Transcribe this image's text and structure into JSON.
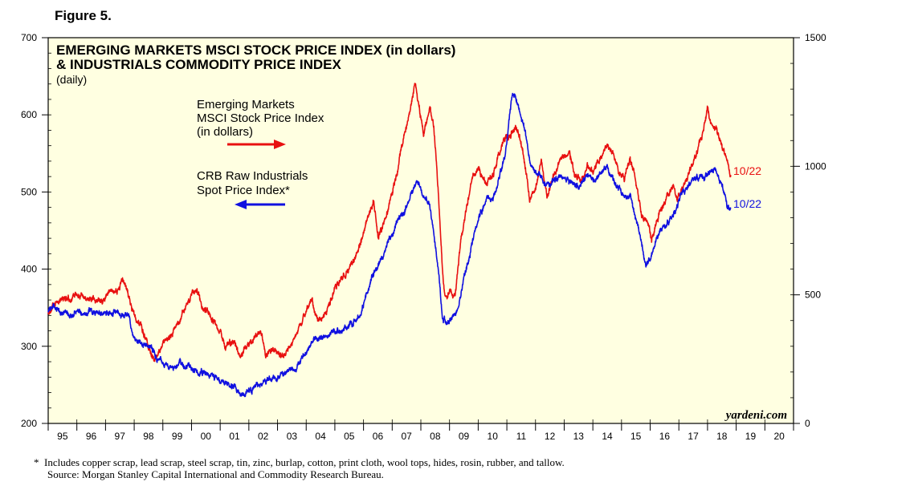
{
  "figure_label": "Figure 5.",
  "chart_data": {
    "type": "line",
    "title_line1": "EMERGING MARKETS MSCI STOCK PRICE INDEX (in dollars)",
    "title_line2": "& INDUSTRIALS COMMODITY PRICE INDEX",
    "subtitle": "(daily)",
    "x_ticks": [
      "95",
      "96",
      "97",
      "98",
      "99",
      "00",
      "01",
      "02",
      "03",
      "04",
      "05",
      "06",
      "07",
      "08",
      "09",
      "10",
      "11",
      "12",
      "13",
      "14",
      "15",
      "16",
      "17",
      "18",
      "19",
      "20"
    ],
    "xlim": [
      1995,
      2021
    ],
    "y_left": {
      "ylim": [
        200,
        700
      ],
      "ticks": [
        200,
        300,
        400,
        500,
        600,
        700
      ],
      "minor_step": 20
    },
    "y_right": {
      "ylim": [
        0,
        1500
      ],
      "ticks": [
        0,
        500,
        1000,
        1500
      ],
      "minor_step": 100
    },
    "series": [
      {
        "name": "Emerging Markets MSCI Stock Price Index (in dollars)",
        "legend_lines": [
          "Emerging Markets",
          "MSCI Stock Price Index",
          "(in dollars)"
        ],
        "axis": "left",
        "color": "#e81010",
        "end_label": "10/22",
        "points": [
          [
            1995.0,
            345
          ],
          [
            1995.2,
            352
          ],
          [
            1995.5,
            365
          ],
          [
            1995.8,
            360
          ],
          [
            1996.0,
            368
          ],
          [
            1996.3,
            362
          ],
          [
            1996.6,
            360
          ],
          [
            1996.9,
            356
          ],
          [
            1997.2,
            375
          ],
          [
            1997.4,
            370
          ],
          [
            1997.6,
            388
          ],
          [
            1997.8,
            365
          ],
          [
            1998.0,
            340
          ],
          [
            1998.2,
            330
          ],
          [
            1998.5,
            300
          ],
          [
            1998.7,
            282
          ],
          [
            1998.9,
            295
          ],
          [
            1999.1,
            305
          ],
          [
            1999.3,
            315
          ],
          [
            1999.6,
            335
          ],
          [
            1999.8,
            350
          ],
          [
            2000.0,
            365
          ],
          [
            2000.15,
            375
          ],
          [
            2000.35,
            350
          ],
          [
            2000.6,
            345
          ],
          [
            2000.9,
            325
          ],
          [
            2001.2,
            300
          ],
          [
            2001.5,
            305
          ],
          [
            2001.7,
            285
          ],
          [
            2001.9,
            300
          ],
          [
            2002.2,
            310
          ],
          [
            2002.4,
            318
          ],
          [
            2002.6,
            290
          ],
          [
            2002.8,
            295
          ],
          [
            2003.0,
            290
          ],
          [
            2003.2,
            288
          ],
          [
            2003.5,
            305
          ],
          [
            2003.8,
            325
          ],
          [
            2004.0,
            345
          ],
          [
            2004.2,
            360
          ],
          [
            2004.4,
            330
          ],
          [
            2004.7,
            345
          ],
          [
            2005.0,
            375
          ],
          [
            2005.3,
            390
          ],
          [
            2005.6,
            405
          ],
          [
            2005.9,
            435
          ],
          [
            2006.1,
            460
          ],
          [
            2006.35,
            490
          ],
          [
            2006.5,
            440
          ],
          [
            2006.8,
            470
          ],
          [
            2007.0,
            500
          ],
          [
            2007.2,
            530
          ],
          [
            2007.4,
            570
          ],
          [
            2007.6,
            600
          ],
          [
            2007.8,
            640
          ],
          [
            2007.9,
            620
          ],
          [
            2008.1,
            575
          ],
          [
            2008.3,
            610
          ],
          [
            2008.45,
            585
          ],
          [
            2008.6,
            505
          ],
          [
            2008.75,
            400
          ],
          [
            2008.85,
            360
          ],
          [
            2009.0,
            375
          ],
          [
            2009.2,
            365
          ],
          [
            2009.4,
            440
          ],
          [
            2009.6,
            480
          ],
          [
            2009.8,
            520
          ],
          [
            2010.0,
            530
          ],
          [
            2010.3,
            510
          ],
          [
            2010.5,
            520
          ],
          [
            2010.8,
            560
          ],
          [
            2010.95,
            570
          ],
          [
            2011.1,
            570
          ],
          [
            2011.3,
            585
          ],
          [
            2011.5,
            565
          ],
          [
            2011.7,
            520
          ],
          [
            2011.8,
            490
          ],
          [
            2012.0,
            505
          ],
          [
            2012.2,
            540
          ],
          [
            2012.4,
            495
          ],
          [
            2012.6,
            515
          ],
          [
            2012.9,
            545
          ],
          [
            2013.2,
            545
          ],
          [
            2013.4,
            520
          ],
          [
            2013.6,
            515
          ],
          [
            2013.8,
            535
          ],
          [
            2014.0,
            525
          ],
          [
            2014.2,
            540
          ],
          [
            2014.5,
            560
          ],
          [
            2014.7,
            548
          ],
          [
            2014.9,
            525
          ],
          [
            2015.1,
            520
          ],
          [
            2015.3,
            545
          ],
          [
            2015.5,
            515
          ],
          [
            2015.7,
            470
          ],
          [
            2015.9,
            465
          ],
          [
            2016.05,
            440
          ],
          [
            2016.3,
            470
          ],
          [
            2016.6,
            495
          ],
          [
            2016.8,
            505
          ],
          [
            2016.95,
            490
          ],
          [
            2017.2,
            510
          ],
          [
            2017.5,
            540
          ],
          [
            2017.8,
            570
          ],
          [
            2018.0,
            612
          ],
          [
            2018.1,
            590
          ],
          [
            2018.3,
            580
          ],
          [
            2018.5,
            560
          ],
          [
            2018.65,
            545
          ],
          [
            2018.75,
            530
          ],
          [
            2018.81,
            522
          ]
        ]
      },
      {
        "name": "CRB Raw Industrials Spot Price Index*",
        "legend_lines": [
          "CRB Raw Industrials",
          "Spot Price Index*"
        ],
        "axis": "right",
        "color": "#1010e0",
        "end_label": "10/22",
        "points": [
          [
            1995.0,
            440
          ],
          [
            1995.2,
            455
          ],
          [
            1995.5,
            430
          ],
          [
            1995.8,
            420
          ],
          [
            1996.0,
            440
          ],
          [
            1996.3,
            425
          ],
          [
            1996.6,
            440
          ],
          [
            1996.9,
            425
          ],
          [
            1997.1,
            430
          ],
          [
            1997.3,
            435
          ],
          [
            1997.6,
            425
          ],
          [
            1997.8,
            415
          ],
          [
            1998.0,
            330
          ],
          [
            1998.3,
            310
          ],
          [
            1998.6,
            295
          ],
          [
            1998.8,
            250
          ],
          [
            1999.0,
            235
          ],
          [
            1999.3,
            210
          ],
          [
            1999.6,
            225
          ],
          [
            1999.9,
            215
          ],
          [
            2000.2,
            205
          ],
          [
            2000.5,
            190
          ],
          [
            2000.8,
            180
          ],
          [
            2001.1,
            160
          ],
          [
            2001.3,
            155
          ],
          [
            2001.5,
            140
          ],
          [
            2001.7,
            105
          ],
          [
            2001.9,
            120
          ],
          [
            2002.2,
            135
          ],
          [
            2002.5,
            160
          ],
          [
            2002.8,
            175
          ],
          [
            2003.0,
            180
          ],
          [
            2003.3,
            200
          ],
          [
            2003.6,
            210
          ],
          [
            2003.9,
            260
          ],
          [
            2004.1,
            300
          ],
          [
            2004.3,
            330
          ],
          [
            2004.6,
            330
          ],
          [
            2004.9,
            360
          ],
          [
            2005.2,
            360
          ],
          [
            2005.5,
            385
          ],
          [
            2005.7,
            400
          ],
          [
            2005.9,
            420
          ],
          [
            2006.1,
            500
          ],
          [
            2006.3,
            570
          ],
          [
            2006.5,
            610
          ],
          [
            2006.8,
            690
          ],
          [
            2007.0,
            740
          ],
          [
            2007.2,
            790
          ],
          [
            2007.4,
            820
          ],
          [
            2007.6,
            870
          ],
          [
            2007.8,
            930
          ],
          [
            2007.9,
            940
          ],
          [
            2008.1,
            880
          ],
          [
            2008.3,
            850
          ],
          [
            2008.45,
            740
          ],
          [
            2008.6,
            600
          ],
          [
            2008.75,
            420
          ],
          [
            2008.9,
            380
          ],
          [
            2009.1,
            420
          ],
          [
            2009.3,
            450
          ],
          [
            2009.5,
            560
          ],
          [
            2009.7,
            650
          ],
          [
            2009.9,
            760
          ],
          [
            2010.1,
            820
          ],
          [
            2010.3,
            880
          ],
          [
            2010.5,
            860
          ],
          [
            2010.8,
            980
          ],
          [
            2010.95,
            1050
          ],
          [
            2011.1,
            1200
          ],
          [
            2011.2,
            1300
          ],
          [
            2011.4,
            1230
          ],
          [
            2011.6,
            1150
          ],
          [
            2011.8,
            1020
          ],
          [
            2012.0,
            980
          ],
          [
            2012.2,
            960
          ],
          [
            2012.4,
            920
          ],
          [
            2012.6,
            940
          ],
          [
            2012.9,
            960
          ],
          [
            2013.2,
            940
          ],
          [
            2013.5,
            920
          ],
          [
            2013.8,
            960
          ],
          [
            2014.1,
            940
          ],
          [
            2014.3,
            980
          ],
          [
            2014.5,
            1000
          ],
          [
            2014.7,
            950
          ],
          [
            2014.9,
            920
          ],
          [
            2015.1,
            880
          ],
          [
            2015.3,
            890
          ],
          [
            2015.5,
            800
          ],
          [
            2015.7,
            700
          ],
          [
            2015.85,
            620
          ],
          [
            2016.0,
            640
          ],
          [
            2016.3,
            740
          ],
          [
            2016.6,
            780
          ],
          [
            2016.9,
            830
          ],
          [
            2017.1,
            900
          ],
          [
            2017.3,
            920
          ],
          [
            2017.6,
            960
          ],
          [
            2017.9,
            960
          ],
          [
            2018.1,
            980
          ],
          [
            2018.3,
            990
          ],
          [
            2018.5,
            930
          ],
          [
            2018.7,
            840
          ],
          [
            2018.81,
            840
          ]
        ]
      }
    ],
    "watermark": "yardeni.com"
  },
  "footnotes": {
    "line1_marker": "*",
    "line1": "Includes copper scrap, lead scrap, steel scrap, tin, zinc, burlap, cotton, print cloth, wool tops, hides, rosin, rubber, and tallow.",
    "line2": "Source: Morgan Stanley Capital International and Commodity Research Bureau."
  }
}
